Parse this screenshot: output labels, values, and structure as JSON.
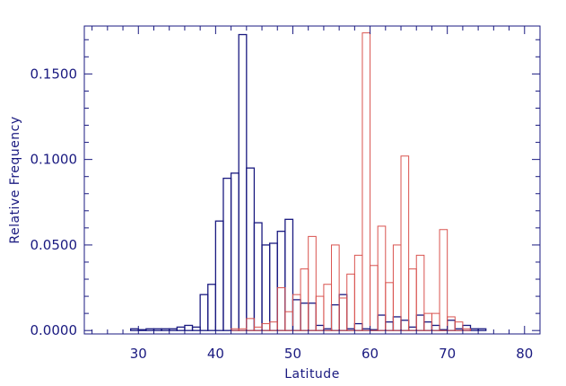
{
  "chart_data": {
    "type": "bar",
    "xlabel": "Latitude",
    "ylabel": "Relative Frequency",
    "xlim": [
      23,
      82
    ],
    "ylim": [
      -0.002,
      0.178
    ],
    "x_ticks": [
      "30",
      "40",
      "50",
      "60",
      "70",
      "80"
    ],
    "y_ticks": [
      "0.0000",
      "0.0500",
      "0.1000",
      "0.1500"
    ],
    "bin_width": 1,
    "grid": false,
    "colors": {
      "axes": "#1a1a80",
      "series_a": "#1a1a80",
      "series_b": "#d9534f"
    },
    "series": [
      {
        "color": "#1a1a80",
        "bins": [
          [
            29.5,
            0.001
          ],
          [
            30.5,
            0.0005
          ],
          [
            31.5,
            0.001
          ],
          [
            32.5,
            0.001
          ],
          [
            33.5,
            0.001
          ],
          [
            34.5,
            0.001
          ],
          [
            35.5,
            0.002
          ],
          [
            36.5,
            0.003
          ],
          [
            37.5,
            0.002
          ],
          [
            38.5,
            0.021
          ],
          [
            39.5,
            0.027
          ],
          [
            40.5,
            0.064
          ],
          [
            41.5,
            0.089
          ],
          [
            42.5,
            0.092
          ],
          [
            43.5,
            0.173
          ],
          [
            44.5,
            0.095
          ],
          [
            45.5,
            0.063
          ],
          [
            46.5,
            0.05
          ],
          [
            47.5,
            0.051
          ],
          [
            48.5,
            0.058
          ],
          [
            49.5,
            0.065
          ],
          [
            50.5,
            0.018
          ],
          [
            51.5,
            0.016
          ],
          [
            52.5,
            0.016
          ],
          [
            53.5,
            0.003
          ],
          [
            54.5,
            0.001
          ],
          [
            55.5,
            0.015
          ],
          [
            56.5,
            0.021
          ],
          [
            57.5,
            0.001
          ],
          [
            58.5,
            0.004
          ],
          [
            59.5,
            0.001
          ],
          [
            60.5,
            0.0005
          ],
          [
            61.5,
            0.009
          ],
          [
            62.5,
            0.005
          ],
          [
            63.5,
            0.008
          ],
          [
            64.5,
            0.006
          ],
          [
            65.5,
            0.002
          ],
          [
            66.5,
            0.009
          ],
          [
            67.5,
            0.005
          ],
          [
            68.5,
            0.003
          ],
          [
            69.5,
            0.0005
          ],
          [
            70.5,
            0.006
          ],
          [
            71.5,
            0.001
          ],
          [
            72.5,
            0.003
          ],
          [
            73.5,
            0.001
          ],
          [
            74.5,
            0.001
          ]
        ]
      },
      {
        "color": "#d9534f",
        "bins": [
          [
            42.5,
            0.001
          ],
          [
            43.5,
            0.001
          ],
          [
            44.5,
            0.007
          ],
          [
            45.5,
            0.002
          ],
          [
            46.5,
            0.004
          ],
          [
            47.5,
            0.005
          ],
          [
            48.5,
            0.025
          ],
          [
            49.5,
            0.011
          ],
          [
            50.5,
            0.021
          ],
          [
            51.5,
            0.036
          ],
          [
            52.5,
            0.055
          ],
          [
            53.5,
            0.02
          ],
          [
            54.5,
            0.027
          ],
          [
            55.5,
            0.05
          ],
          [
            56.5,
            0.019
          ],
          [
            57.5,
            0.033
          ],
          [
            58.5,
            0.044
          ],
          [
            59.5,
            0.174
          ],
          [
            60.5,
            0.038
          ],
          [
            61.5,
            0.061
          ],
          [
            62.5,
            0.028
          ],
          [
            63.5,
            0.05
          ],
          [
            64.5,
            0.102
          ],
          [
            65.5,
            0.036
          ],
          [
            66.5,
            0.044
          ],
          [
            67.5,
            0.01
          ],
          [
            68.5,
            0.01
          ],
          [
            69.5,
            0.059
          ],
          [
            70.5,
            0.008
          ],
          [
            71.5,
            0.005
          ],
          [
            72.5,
            0.001
          ]
        ]
      }
    ]
  }
}
